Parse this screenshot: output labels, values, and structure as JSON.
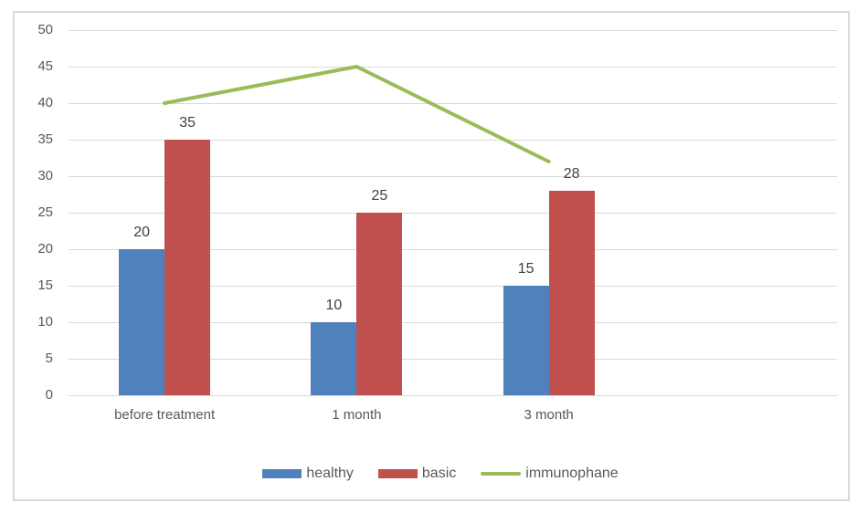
{
  "chart": {
    "background": "#ffffff",
    "frame_border_color": "#d9d9d9",
    "gridline_color": "#d9d9d9",
    "tick_label_color": "#595959",
    "category_label_color": "#595959",
    "legend_label_color": "#595959",
    "data_label_color": "#404040"
  },
  "chart_data": {
    "type": "bar",
    "title": "",
    "xlabel": "",
    "ylabel": "",
    "categories": [
      "before treatment",
      "1 month",
      "3 month"
    ],
    "series": [
      {
        "name": "healthy",
        "type": "bar",
        "color": "#4F81BD",
        "values": [
          20,
          10,
          15
        ]
      },
      {
        "name": "basic",
        "type": "bar",
        "color": "#C0504D",
        "values": [
          35,
          25,
          28
        ]
      },
      {
        "name": "immunophane",
        "type": "line",
        "color": "#9BBB59",
        "values": [
          40,
          45,
          32
        ]
      }
    ],
    "ylim": [
      0,
      50
    ],
    "ytick_step": 5,
    "yticks": [
      0,
      5,
      10,
      15,
      20,
      25,
      30,
      35,
      40,
      45,
      50
    ],
    "grid": true,
    "legend_position": "bottom",
    "category_slots": 4,
    "bar_value_labels": true
  }
}
